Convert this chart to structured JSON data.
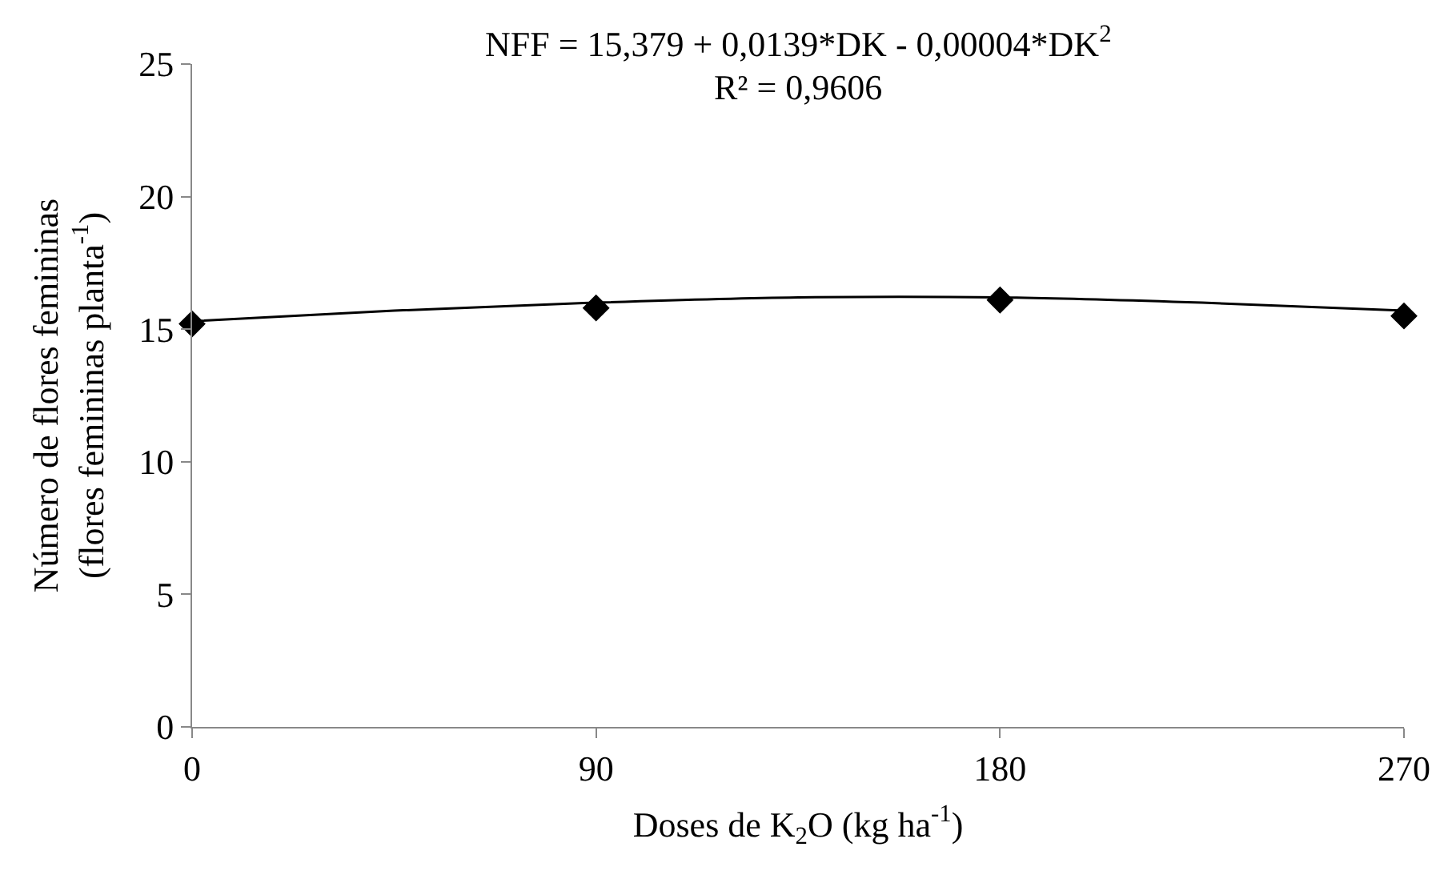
{
  "chart_data": {
    "type": "scatter",
    "xlabel": "Doses de K$_{2}$O (kg ha$^{-1}$)",
    "ylabel": "Número de flores femininas\n(flores femininas planta$^{-1}$)",
    "annotations": [
      "NFF = 15,379 + 0,0139*DK - 0,00004*DK$^{2}$",
      "R² = 0,9606"
    ],
    "series": [
      {
        "color": "#000000",
        "marker": "diamond",
        "x": [
          0,
          90,
          180,
          270
        ],
        "values": [
          15.2,
          15.8,
          16.1,
          15.5
        ]
      },
      {
        "type": "line",
        "color": "#000000",
        "marker": "none",
        "line_style": "solid",
        "x": [
          0,
          45,
          90,
          135,
          180,
          225,
          270
        ],
        "values": [
          15.3,
          15.7,
          16.0,
          16.2,
          16.2,
          16.0,
          15.7
        ]
      }
    ],
    "xlim": [
      0,
      270
    ],
    "xticks": [
      0,
      90,
      180,
      270
    ],
    "ylim": [
      0,
      25
    ],
    "yticks": [
      0,
      5,
      10,
      15,
      20,
      25
    ]
  }
}
